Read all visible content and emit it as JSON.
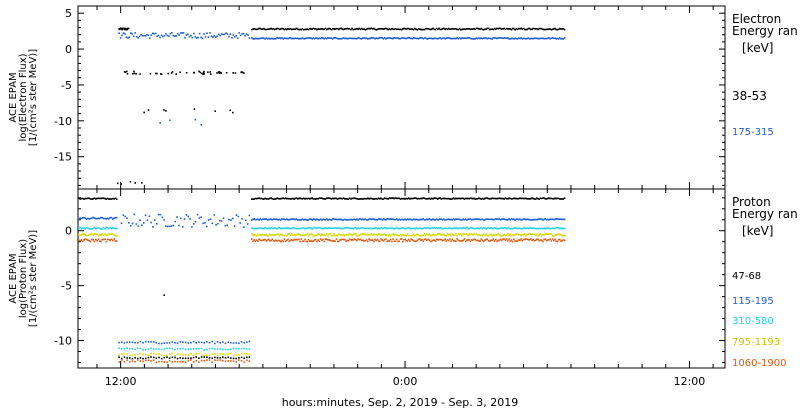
{
  "chart_data": [
    {
      "type": "scatter",
      "ylabel_lines": [
        "ACE EPAM",
        "log(Electron Flux)",
        "[1/(cm²s ster MeV)]"
      ],
      "ylim": [
        -19.5,
        6
      ],
      "yticks": [
        5,
        0,
        -5,
        -10,
        -15
      ],
      "legend_title_lines": [
        "Electron",
        "Energy ran"
      ],
      "legend_unit": "[keV]",
      "series": [
        {
          "name": "38-53",
          "color": "#000000",
          "label_color": "#000000",
          "segments": [
            {
              "x0": 11.9,
              "x1": 12.3,
              "y": 2.9,
              "noise": 0.12,
              "n": 20
            },
            {
              "x0": 17.5,
              "x1": 30.7,
              "y": 2.9,
              "noise": 0.1,
              "n": 260
            },
            {
              "x0": 12.0,
              "x1": 17.2,
              "y": -3.2,
              "noise": 0.2,
              "n": 45,
              "sparse": true
            },
            {
              "x0": 12.9,
              "x1": 17.4,
              "y": -8.5,
              "noise": 0.3,
              "n": 8,
              "sparse": true
            },
            {
              "x0": 11.8,
              "x1": 14.3,
              "y": -18.5,
              "noise": 0.2,
              "n": 5,
              "sparse": true
            }
          ]
        },
        {
          "name": "175-315",
          "color": "#1f5fcf",
          "label_color": "#1f5fcf",
          "segments": [
            {
              "x0": 11.9,
              "x1": 17.4,
              "y": 2.0,
              "noise": 0.4,
              "n": 90
            },
            {
              "x0": 17.5,
              "x1": 30.7,
              "y": 1.6,
              "noise": 0.08,
              "n": 260
            },
            {
              "x0": 13.6,
              "x1": 16.2,
              "y": -10.0,
              "noise": 0.5,
              "n": 4,
              "sparse": true
            }
          ]
        }
      ]
    },
    {
      "type": "scatter",
      "ylabel_lines": [
        "ACE EPAM",
        "log(Proton Flux)",
        "[1/(cm²s ster MeV)]"
      ],
      "ylim": [
        -12.5,
        3.8
      ],
      "yticks": [
        0,
        -5,
        -10
      ],
      "legend_title_lines": [
        "Proton",
        "Energy ran"
      ],
      "legend_unit": "[keV]",
      "series": [
        {
          "name": "47-68",
          "color": "#000000",
          "label_color": "#000000",
          "segments": [
            {
              "x0": 10.2,
              "x1": 11.8,
              "y": 3.0,
              "noise": 0.05,
              "n": 30
            },
            {
              "x0": 17.5,
              "x1": 30.7,
              "y": 3.0,
              "noise": 0.05,
              "n": 260
            },
            {
              "x0": 13.8,
              "x1": 13.9,
              "y": -5.8,
              "noise": 0.0,
              "n": 1
            },
            {
              "x0": 11.9,
              "x1": 17.4,
              "y": -11.5,
              "noise": 0.08,
              "n": 50
            }
          ]
        },
        {
          "name": "115-195",
          "color": "#1f5fcf",
          "label_color": "#1f5fcf",
          "segments": [
            {
              "x0": 10.2,
              "x1": 11.8,
              "y": 1.2,
              "noise": 0.08,
              "n": 30
            },
            {
              "x0": 12.0,
              "x1": 17.4,
              "y": 1.0,
              "noise": 0.6,
              "n": 70
            },
            {
              "x0": 17.5,
              "x1": 30.7,
              "y": 1.1,
              "noise": 0.05,
              "n": 260
            },
            {
              "x0": 11.9,
              "x1": 17.4,
              "y": -10.1,
              "noise": 0.1,
              "n": 50
            }
          ]
        },
        {
          "name": "310-580",
          "color": "#22d3e8",
          "label_color": "#22d3e8",
          "segments": [
            {
              "x0": 10.2,
              "x1": 11.8,
              "y": 0.3,
              "noise": 0.08,
              "n": 30
            },
            {
              "x0": 17.5,
              "x1": 30.7,
              "y": 0.3,
              "noise": 0.05,
              "n": 260
            },
            {
              "x0": 11.9,
              "x1": 17.4,
              "y": -10.7,
              "noise": 0.08,
              "n": 50
            }
          ]
        },
        {
          "name": "795-1193",
          "color": "#d6d600",
          "label_color": "#c8c800",
          "segments": [
            {
              "x0": 10.2,
              "x1": 11.8,
              "y": -0.3,
              "noise": 0.1,
              "n": 30
            },
            {
              "x0": 17.5,
              "x1": 30.7,
              "y": -0.3,
              "noise": 0.1,
              "n": 260
            },
            {
              "x0": 11.9,
              "x1": 17.4,
              "y": -11.2,
              "noise": 0.1,
              "n": 50
            }
          ]
        },
        {
          "name": "1060-1900",
          "color": "#e05a10",
          "label_color": "#e05a10",
          "segments": [
            {
              "x0": 10.2,
              "x1": 11.8,
              "y": -0.8,
              "noise": 0.12,
              "n": 30
            },
            {
              "x0": 17.5,
              "x1": 30.7,
              "y": -0.8,
              "noise": 0.12,
              "n": 260
            },
            {
              "x0": 11.9,
              "x1": 17.4,
              "y": -11.8,
              "noise": 0.12,
              "n": 50
            }
          ]
        }
      ]
    }
  ],
  "x_axis": {
    "range_hours": [
      10.2,
      37.5
    ],
    "ticks": [
      {
        "label": "12:00",
        "h": 12
      },
      {
        "label": "0:00",
        "h": 24
      },
      {
        "label": "12:00",
        "h": 36
      }
    ],
    "xlabel": "hours:minutes, Sep.  2, 2019 - Sep.  3, 2019"
  }
}
